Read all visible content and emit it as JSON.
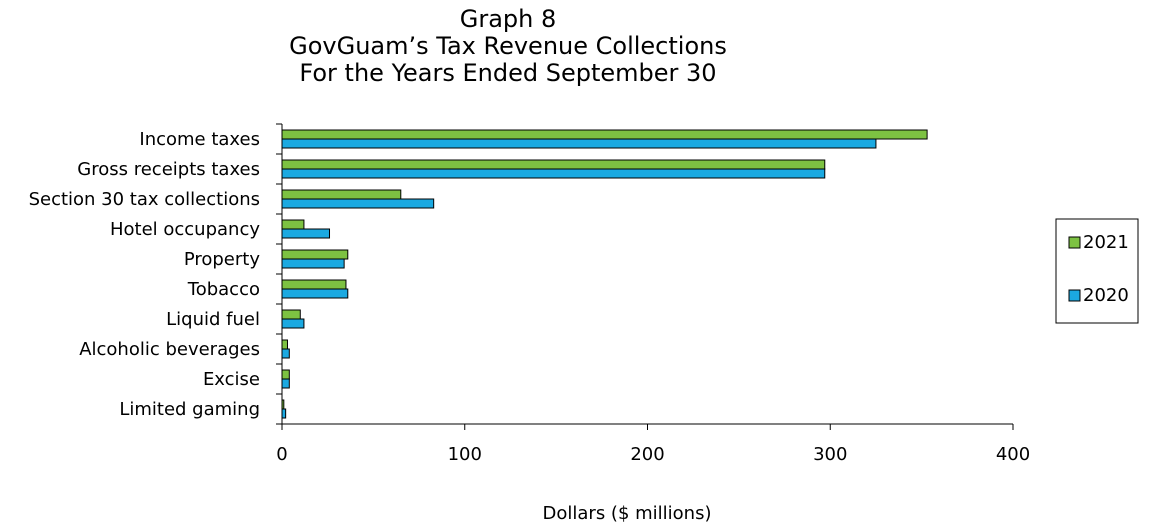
{
  "chart_data": {
    "type": "bar",
    "orientation": "horizontal",
    "title_lines": [
      "Graph 8",
      "GovGuam’s Tax Revenue Collections",
      "For the Years Ended September 30"
    ],
    "xlabel": "Dollars ($ millions)",
    "ylabel": "",
    "xlim": [
      0,
      400
    ],
    "xticks": [
      "0",
      "100",
      "200",
      "300",
      "400"
    ],
    "categories": [
      "Income taxes",
      "Gross receipts taxes",
      "Section 30 tax collections",
      "Hotel occupancy",
      "Property",
      "Tobacco",
      "Liquid fuel",
      "Alcoholic beverages",
      "Excise",
      "Limited gaming"
    ],
    "series": [
      {
        "name": "2021",
        "color": "#7dc242",
        "values": [
          353,
          297,
          65,
          12,
          36,
          35,
          10,
          3,
          4,
          1
        ]
      },
      {
        "name": "2020",
        "color": "#1ba9e1",
        "values": [
          325,
          297,
          83,
          26,
          34,
          36,
          12,
          4,
          4,
          2
        ]
      }
    ],
    "grid": false,
    "legend_position": "right"
  }
}
